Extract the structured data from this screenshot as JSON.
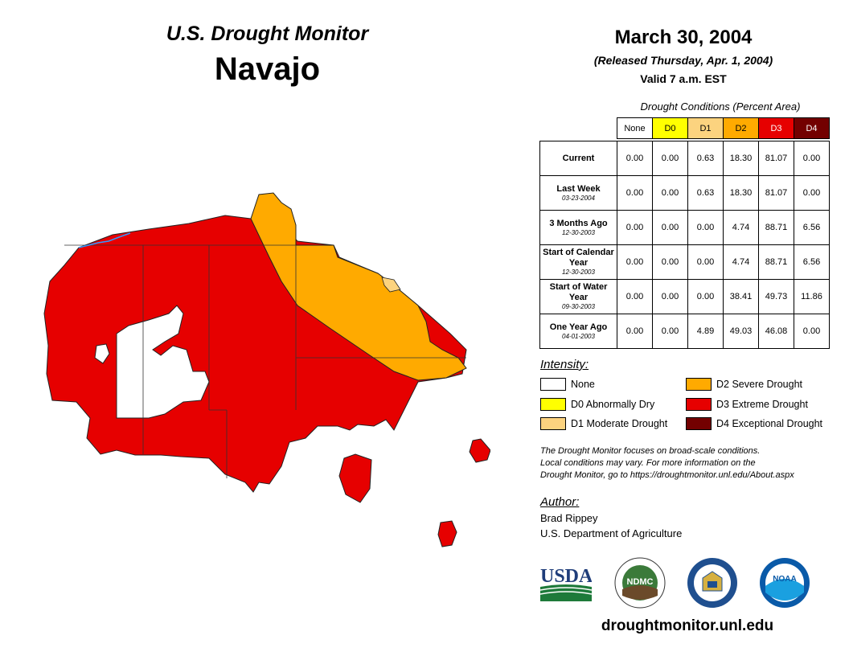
{
  "header": {
    "title": "U.S. Drought Monitor",
    "region": "Navajo",
    "date": "March 30, 2004",
    "released": "(Released Thursday, Apr. 1, 2004)",
    "valid": "Valid 7 a.m. EST"
  },
  "table": {
    "caption": "Drought Conditions (Percent Area)",
    "columns": [
      "None",
      "D0",
      "D1",
      "D2",
      "D3",
      "D4"
    ],
    "column_colors": [
      "#ffffff",
      "#ffff00",
      "#fcd37f",
      "#ffaa00",
      "#e60000",
      "#730000"
    ],
    "rows": [
      {
        "label": "Current",
        "sub": "",
        "values": [
          "0.00",
          "0.00",
          "0.63",
          "18.30",
          "81.07",
          "0.00"
        ]
      },
      {
        "label": "Last Week",
        "sub": "03-23-2004",
        "values": [
          "0.00",
          "0.00",
          "0.63",
          "18.30",
          "81.07",
          "0.00"
        ]
      },
      {
        "label": "3 Months Ago",
        "sub": "12-30-2003",
        "values": [
          "0.00",
          "0.00",
          "0.00",
          "4.74",
          "88.71",
          "6.56"
        ]
      },
      {
        "label": "Start of Calendar Year",
        "sub": "12-30-2003",
        "values": [
          "0.00",
          "0.00",
          "0.00",
          "4.74",
          "88.71",
          "6.56"
        ]
      },
      {
        "label": "Start of Water Year",
        "sub": "09-30-2003",
        "values": [
          "0.00",
          "0.00",
          "0.00",
          "38.41",
          "49.73",
          "11.86"
        ]
      },
      {
        "label": "One Year Ago",
        "sub": "04-01-2003",
        "values": [
          "0.00",
          "0.00",
          "4.89",
          "49.03",
          "46.08",
          "0.00"
        ]
      }
    ]
  },
  "legend": {
    "title": "Intensity:",
    "items": [
      {
        "label": "None",
        "color": "#ffffff"
      },
      {
        "label": "D0 Abnormally Dry",
        "color": "#ffff00"
      },
      {
        "label": "D1 Moderate Drought",
        "color": "#fcd37f"
      },
      {
        "label": "D2 Severe Drought",
        "color": "#ffaa00"
      },
      {
        "label": "D3 Extreme Drought",
        "color": "#e60000"
      },
      {
        "label": "D4 Exceptional Drought",
        "color": "#730000"
      }
    ]
  },
  "note": {
    "line1": "The Drought Monitor focuses on broad-scale conditions.",
    "line2": "Local conditions may vary. For more information on the",
    "line3": "Drought Monitor, go to https://droughtmonitor.unl.edu/About.aspx"
  },
  "author": {
    "title": "Author:",
    "name": "Brad Rippey",
    "org": "U.S. Department of Agriculture"
  },
  "logos": {
    "usda": "USDA",
    "ndmc": "NDMC",
    "noaa": "NOAA"
  },
  "website": "droughtmonitor.unl.edu"
}
